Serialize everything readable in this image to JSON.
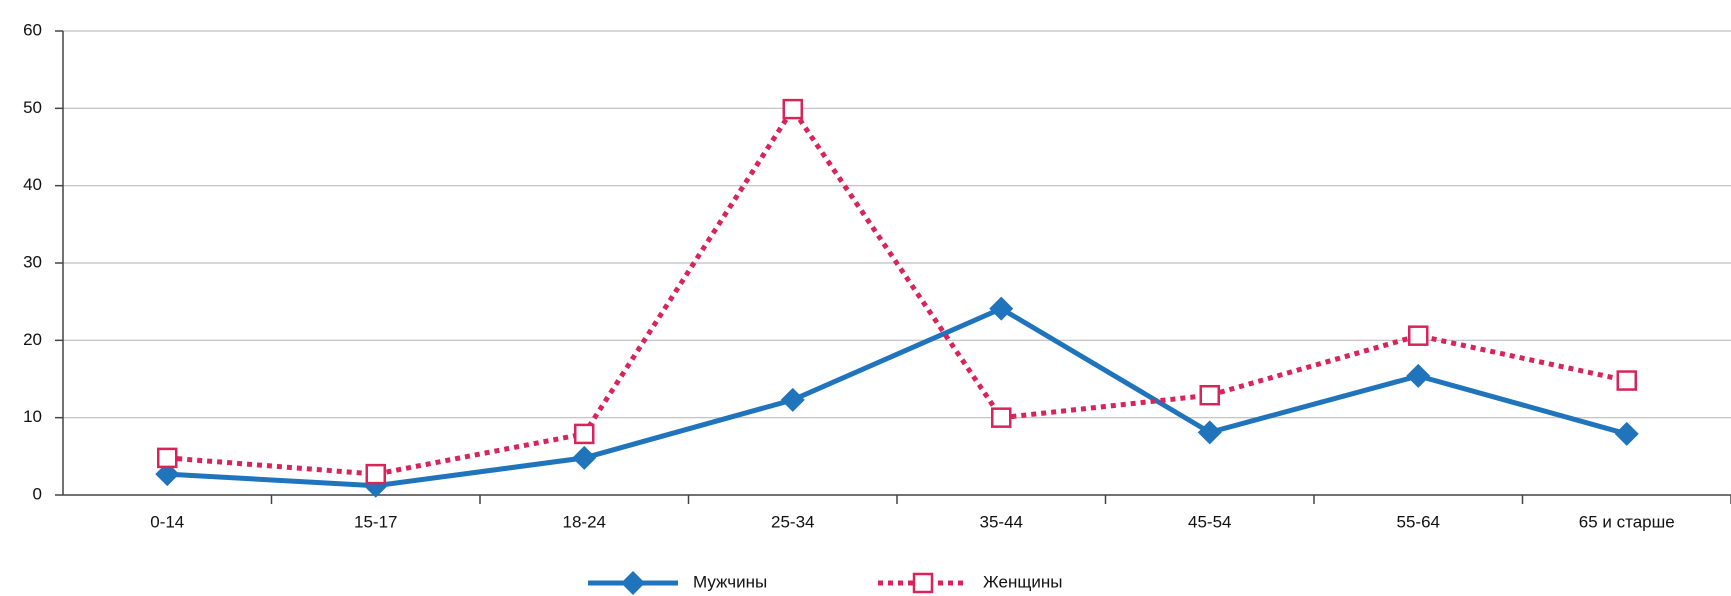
{
  "chart_data": {
    "type": "line",
    "categories": [
      "0-14",
      "15-17",
      "18-24",
      "25-34",
      "35-44",
      "45-54",
      "55-64",
      "65 и старше"
    ],
    "series": [
      {
        "name": "Мужчины",
        "color": "#1f74bb",
        "values": [
          2.7,
          1.2,
          4.8,
          12.3,
          24.1,
          8.1,
          15.4,
          7.9
        ]
      },
      {
        "name": "Женщины",
        "color": "#d8245a",
        "values": [
          4.8,
          2.7,
          7.9,
          49.9,
          10.0,
          12.9,
          20.6,
          14.8
        ]
      }
    ],
    "ylim": [
      0,
      60
    ],
    "yticks": [
      0,
      10,
      20,
      30,
      40,
      50,
      60
    ],
    "grid": true,
    "legend": "bottom"
  }
}
